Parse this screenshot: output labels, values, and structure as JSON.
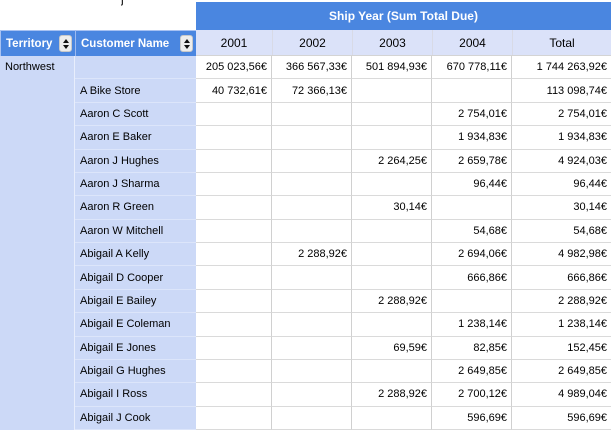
{
  "artifact": "j",
  "band": {
    "title": "Ship Year (Sum Total Due)"
  },
  "columns": {
    "territory": "Territory",
    "customer": "Customer Name",
    "years": [
      "2001",
      "2002",
      "2003",
      "2004",
      "Total"
    ]
  },
  "territory_label": "Northwest",
  "icons": {
    "sort": "sort-up-down-arrows"
  },
  "colors": {
    "header_blue": "#4a86e0",
    "row_label_blue": "#ccd9f7",
    "year_header_blue": "#dbe2f9",
    "grid_line": "#d0d0d0"
  },
  "rows": [
    {
      "customer": "",
      "values": [
        "205 023,56€",
        "366 567,33€",
        "501 894,93€",
        "670 778,11€",
        "1 744 263,92€"
      ]
    },
    {
      "customer": "A Bike Store",
      "values": [
        "40 732,61€",
        "72 366,13€",
        "",
        "",
        "113 098,74€"
      ]
    },
    {
      "customer": "Aaron C Scott",
      "values": [
        "",
        "",
        "",
        "2 754,01€",
        "2 754,01€"
      ]
    },
    {
      "customer": "Aaron E Baker",
      "values": [
        "",
        "",
        "",
        "1 934,83€",
        "1 934,83€"
      ]
    },
    {
      "customer": "Aaron J Hughes",
      "values": [
        "",
        "",
        "2 264,25€",
        "2 659,78€",
        "4 924,03€"
      ]
    },
    {
      "customer": "Aaron J Sharma",
      "values": [
        "",
        "",
        "",
        "96,44€",
        "96,44€"
      ]
    },
    {
      "customer": "Aaron R Green",
      "values": [
        "",
        "",
        "30,14€",
        "",
        "30,14€"
      ]
    },
    {
      "customer": "Aaron W Mitchell",
      "values": [
        "",
        "",
        "",
        "54,68€",
        "54,68€"
      ]
    },
    {
      "customer": "Abigail A Kelly",
      "values": [
        "",
        "2 288,92€",
        "",
        "2 694,06€",
        "4 982,98€"
      ]
    },
    {
      "customer": "Abigail D Cooper",
      "values": [
        "",
        "",
        "",
        "666,86€",
        "666,86€"
      ]
    },
    {
      "customer": "Abigail E Bailey",
      "values": [
        "",
        "",
        "2 288,92€",
        "",
        "2 288,92€"
      ]
    },
    {
      "customer": "Abigail E Coleman",
      "values": [
        "",
        "",
        "",
        "1 238,14€",
        "1 238,14€"
      ]
    },
    {
      "customer": "Abigail E Jones",
      "values": [
        "",
        "",
        "69,59€",
        "82,85€",
        "152,45€"
      ]
    },
    {
      "customer": "Abigail G Hughes",
      "values": [
        "",
        "",
        "",
        "2 649,85€",
        "2 649,85€"
      ]
    },
    {
      "customer": "Abigail I Ross",
      "values": [
        "",
        "",
        "2 288,92€",
        "2 700,12€",
        "4 989,04€"
      ]
    },
    {
      "customer": "Abigail J Cook",
      "values": [
        "",
        "",
        "",
        "596,69€",
        "596,69€"
      ]
    }
  ]
}
